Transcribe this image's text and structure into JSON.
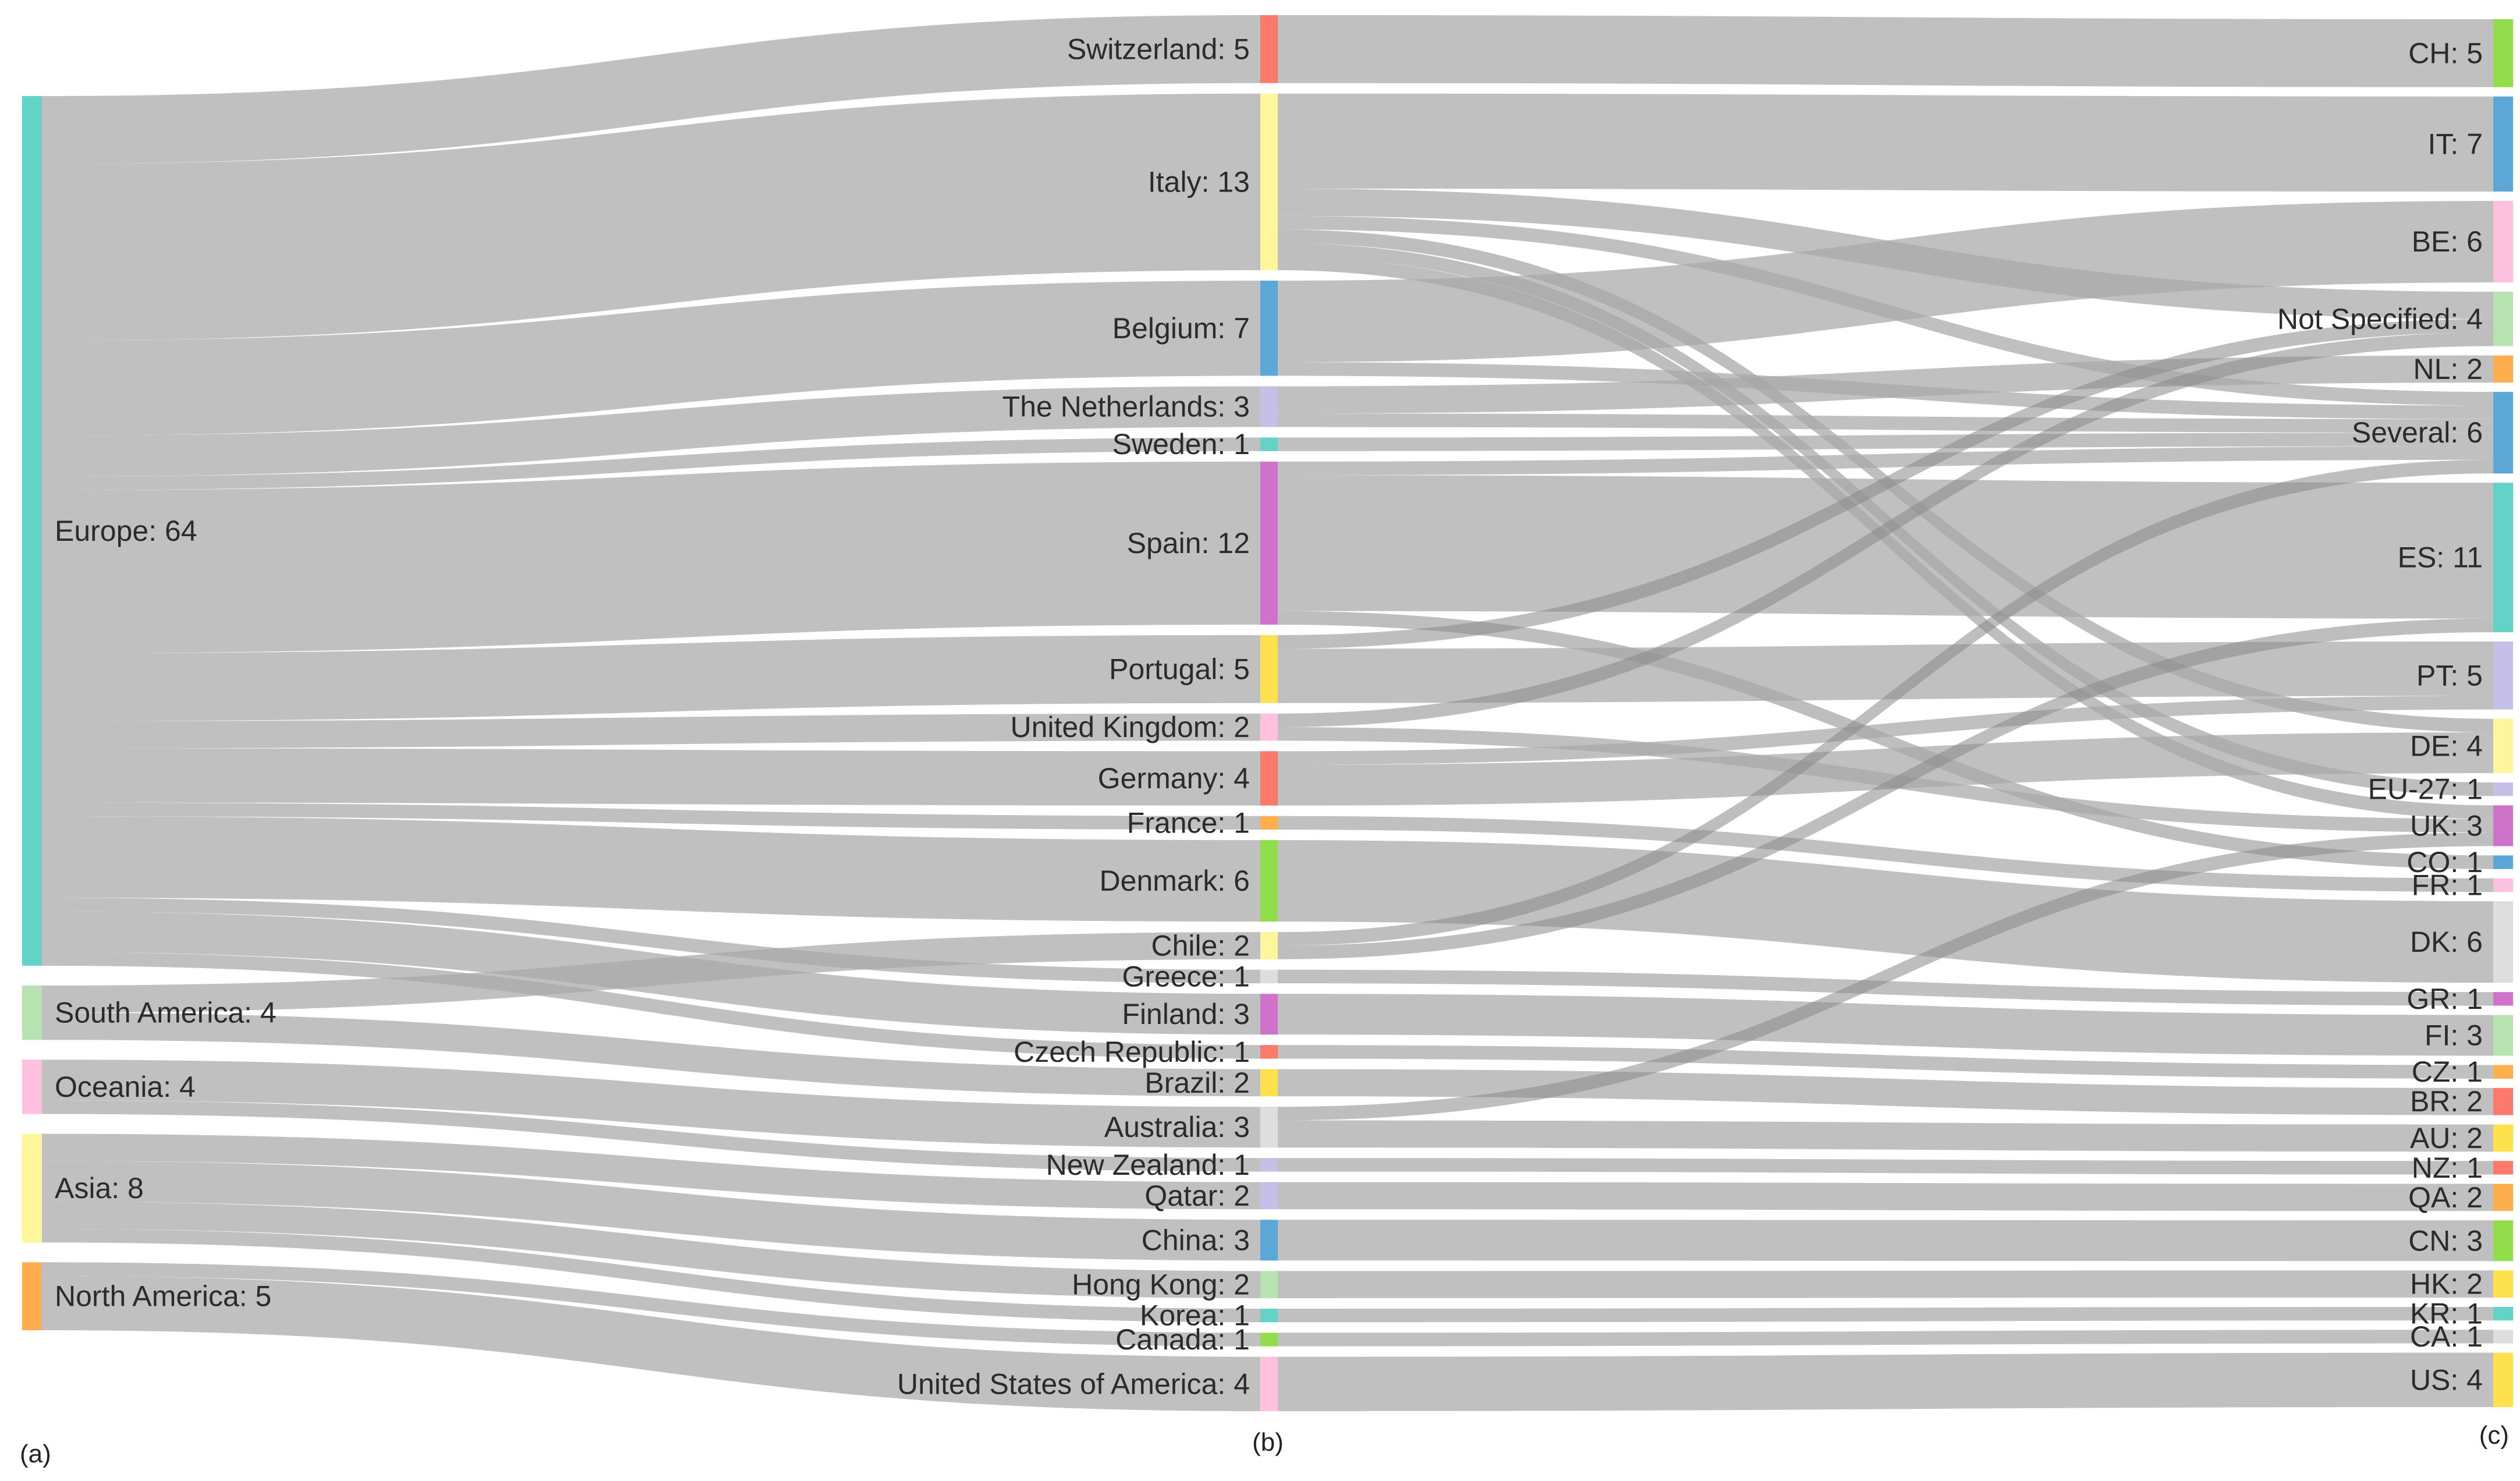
{
  "column_labels": [
    "(a)",
    "(b)",
    "(c)"
  ],
  "palette": {
    "teal": "#62d3c6",
    "green": "#b6e3b0",
    "pink": "#ffc1de",
    "yellow": "#fff59a",
    "orange": "#ffae4d",
    "red": "#fb7a6c",
    "lime": "#92de4a",
    "blue": "#5ba8d6",
    "lavender": "#c5c0e8",
    "magenta": "#cf72c9",
    "gold": "#ffe14d",
    "lightgray": "#dedede",
    "link": "#a8a8a8"
  },
  "chart_data": {
    "type": "sankey",
    "columns": [
      [
        {
          "id": "eu",
          "label": "Europe: 64",
          "value": 64,
          "color": "teal"
        },
        {
          "id": "sa",
          "label": "South America: 4",
          "value": 4,
          "color": "green"
        },
        {
          "id": "oc",
          "label": "Oceania: 4",
          "value": 4,
          "color": "pink"
        },
        {
          "id": "as",
          "label": "Asia: 8",
          "value": 8,
          "color": "yellow"
        },
        {
          "id": "na",
          "label": "North America: 5",
          "value": 5,
          "color": "orange"
        }
      ],
      [
        {
          "id": "ch",
          "label": "Switzerland: 5",
          "value": 5,
          "color": "red"
        },
        {
          "id": "it",
          "label": "Italy: 13",
          "value": 13,
          "color": "yellow"
        },
        {
          "id": "be",
          "label": "Belgium: 7",
          "value": 7,
          "color": "blue"
        },
        {
          "id": "nl",
          "label": "The Netherlands: 3",
          "value": 3,
          "color": "lavender"
        },
        {
          "id": "se",
          "label": "Sweden: 1",
          "value": 1,
          "color": "teal"
        },
        {
          "id": "es",
          "label": "Spain: 12",
          "value": 12,
          "color": "magenta"
        },
        {
          "id": "pt",
          "label": "Portugal: 5",
          "value": 5,
          "color": "gold"
        },
        {
          "id": "uk",
          "label": "United Kingdom: 2",
          "value": 2,
          "color": "pink"
        },
        {
          "id": "de",
          "label": "Germany: 4",
          "value": 4,
          "color": "red"
        },
        {
          "id": "fr",
          "label": "France: 1",
          "value": 1,
          "color": "orange"
        },
        {
          "id": "dk",
          "label": "Denmark: 6",
          "value": 6,
          "color": "lime"
        },
        {
          "id": "cl",
          "label": "Chile: 2",
          "value": 2,
          "color": "yellow"
        },
        {
          "id": "gr",
          "label": "Greece: 1",
          "value": 1,
          "color": "lightgray"
        },
        {
          "id": "fi",
          "label": "Finland: 3",
          "value": 3,
          "color": "magenta"
        },
        {
          "id": "cz",
          "label": "Czech Republic: 1",
          "value": 1,
          "color": "red"
        },
        {
          "id": "br",
          "label": "Brazil: 2",
          "value": 2,
          "color": "gold"
        },
        {
          "id": "au",
          "label": "Australia: 3",
          "value": 3,
          "color": "lightgray"
        },
        {
          "id": "nz",
          "label": "New Zealand: 1",
          "value": 1,
          "color": "lavender"
        },
        {
          "id": "qa",
          "label": "Qatar: 2",
          "value": 2,
          "color": "lavender"
        },
        {
          "id": "cn",
          "label": "China: 3",
          "value": 3,
          "color": "blue"
        },
        {
          "id": "hk",
          "label": "Hong Kong: 2",
          "value": 2,
          "color": "green"
        },
        {
          "id": "kr",
          "label": "Korea: 1",
          "value": 1,
          "color": "teal"
        },
        {
          "id": "ca",
          "label": "Canada: 1",
          "value": 1,
          "color": "lime"
        },
        {
          "id": "us",
          "label": "United States of America: 4",
          "value": 4,
          "color": "pink"
        }
      ],
      [
        {
          "id": "c_ch",
          "label": "CH: 5",
          "value": 5,
          "color": "lime"
        },
        {
          "id": "c_it",
          "label": "IT: 7",
          "value": 7,
          "color": "blue"
        },
        {
          "id": "c_be",
          "label": "BE: 6",
          "value": 6,
          "color": "pink"
        },
        {
          "id": "c_ns",
          "label": "Not Specified: 4",
          "value": 4,
          "color": "green"
        },
        {
          "id": "c_nl",
          "label": "NL: 2",
          "value": 2,
          "color": "orange"
        },
        {
          "id": "c_sev",
          "label": "Several: 6",
          "value": 6,
          "color": "blue"
        },
        {
          "id": "c_es",
          "label": "ES: 11",
          "value": 11,
          "color": "teal"
        },
        {
          "id": "c_pt",
          "label": "PT: 5",
          "value": 5,
          "color": "lavender"
        },
        {
          "id": "c_de",
          "label": "DE: 4",
          "value": 4,
          "color": "yellow"
        },
        {
          "id": "c_eu27",
          "label": "EU-27: 1",
          "value": 1,
          "color": "lavender"
        },
        {
          "id": "c_uk",
          "label": "UK: 3",
          "value": 3,
          "color": "magenta"
        },
        {
          "id": "c_co",
          "label": "CO: 1",
          "value": 1,
          "color": "blue"
        },
        {
          "id": "c_fr",
          "label": "FR: 1",
          "value": 1,
          "color": "pink"
        },
        {
          "id": "c_dk",
          "label": "DK: 6",
          "value": 6,
          "color": "lightgray"
        },
        {
          "id": "c_gr",
          "label": "GR: 1",
          "value": 1,
          "color": "magenta"
        },
        {
          "id": "c_fi",
          "label": "FI: 3",
          "value": 3,
          "color": "green"
        },
        {
          "id": "c_cz",
          "label": "CZ: 1",
          "value": 1,
          "color": "orange"
        },
        {
          "id": "c_br",
          "label": "BR: 2",
          "value": 2,
          "color": "red"
        },
        {
          "id": "c_au",
          "label": "AU: 2",
          "value": 2,
          "color": "gold"
        },
        {
          "id": "c_nz",
          "label": "NZ: 1",
          "value": 1,
          "color": "red"
        },
        {
          "id": "c_qa",
          "label": "QA: 2",
          "value": 2,
          "color": "orange"
        },
        {
          "id": "c_cn",
          "label": "CN: 3",
          "value": 3,
          "color": "lime"
        },
        {
          "id": "c_hk",
          "label": "HK: 2",
          "value": 2,
          "color": "gold"
        },
        {
          "id": "c_kr",
          "label": "KR: 1",
          "value": 1,
          "color": "teal"
        },
        {
          "id": "c_ca",
          "label": "CA: 1",
          "value": 1,
          "color": "lightgray"
        },
        {
          "id": "c_us",
          "label": "US: 4",
          "value": 4,
          "color": "gold"
        }
      ]
    ],
    "links": [
      {
        "source": "eu",
        "target": "ch",
        "value": 5
      },
      {
        "source": "eu",
        "target": "it",
        "value": 13
      },
      {
        "source": "eu",
        "target": "be",
        "value": 7
      },
      {
        "source": "eu",
        "target": "nl",
        "value": 3
      },
      {
        "source": "eu",
        "target": "se",
        "value": 1
      },
      {
        "source": "eu",
        "target": "es",
        "value": 12
      },
      {
        "source": "eu",
        "target": "pt",
        "value": 5
      },
      {
        "source": "eu",
        "target": "uk",
        "value": 2
      },
      {
        "source": "eu",
        "target": "de",
        "value": 4
      },
      {
        "source": "eu",
        "target": "fr",
        "value": 1
      },
      {
        "source": "eu",
        "target": "dk",
        "value": 6
      },
      {
        "source": "eu",
        "target": "gr",
        "value": 1
      },
      {
        "source": "eu",
        "target": "fi",
        "value": 3
      },
      {
        "source": "eu",
        "target": "cz",
        "value": 1
      },
      {
        "source": "sa",
        "target": "cl",
        "value": 2
      },
      {
        "source": "sa",
        "target": "br",
        "value": 2
      },
      {
        "source": "oc",
        "target": "au",
        "value": 3
      },
      {
        "source": "oc",
        "target": "nz",
        "value": 1
      },
      {
        "source": "as",
        "target": "qa",
        "value": 2
      },
      {
        "source": "as",
        "target": "cn",
        "value": 3
      },
      {
        "source": "as",
        "target": "hk",
        "value": 2
      },
      {
        "source": "as",
        "target": "kr",
        "value": 1
      },
      {
        "source": "na",
        "target": "ca",
        "value": 1
      },
      {
        "source": "na",
        "target": "us",
        "value": 4
      },
      {
        "source": "ch",
        "target": "c_ch",
        "value": 5
      },
      {
        "source": "it",
        "target": "c_it",
        "value": 7
      },
      {
        "source": "it",
        "target": "c_ns",
        "value": 2
      },
      {
        "source": "it",
        "target": "c_sev",
        "value": 1
      },
      {
        "source": "it",
        "target": "c_de",
        "value": 1
      },
      {
        "source": "it",
        "target": "c_eu27",
        "value": 1
      },
      {
        "source": "it",
        "target": "c_uk",
        "value": 1
      },
      {
        "source": "be",
        "target": "c_be",
        "value": 6
      },
      {
        "source": "be",
        "target": "c_sev",
        "value": 1
      },
      {
        "source": "nl",
        "target": "c_nl",
        "value": 2
      },
      {
        "source": "nl",
        "target": "c_sev",
        "value": 1
      },
      {
        "source": "se",
        "target": "c_sev",
        "value": 1
      },
      {
        "source": "es",
        "target": "c_sev",
        "value": 1
      },
      {
        "source": "es",
        "target": "c_es",
        "value": 10
      },
      {
        "source": "es",
        "target": "c_co",
        "value": 1
      },
      {
        "source": "pt",
        "target": "c_ns",
        "value": 1
      },
      {
        "source": "pt",
        "target": "c_pt",
        "value": 4
      },
      {
        "source": "uk",
        "target": "c_ns",
        "value": 1
      },
      {
        "source": "uk",
        "target": "c_uk",
        "value": 1
      },
      {
        "source": "de",
        "target": "c_de",
        "value": 3
      },
      {
        "source": "de",
        "target": "c_pt",
        "value": 1
      },
      {
        "source": "fr",
        "target": "c_fr",
        "value": 1
      },
      {
        "source": "dk",
        "target": "c_dk",
        "value": 6
      },
      {
        "source": "cl",
        "target": "c_sev",
        "value": 1
      },
      {
        "source": "cl",
        "target": "c_es",
        "value": 1
      },
      {
        "source": "gr",
        "target": "c_gr",
        "value": 1
      },
      {
        "source": "fi",
        "target": "c_fi",
        "value": 3
      },
      {
        "source": "cz",
        "target": "c_cz",
        "value": 1
      },
      {
        "source": "br",
        "target": "c_br",
        "value": 2
      },
      {
        "source": "au",
        "target": "c_uk",
        "value": 1
      },
      {
        "source": "au",
        "target": "c_au",
        "value": 2
      },
      {
        "source": "nz",
        "target": "c_nz",
        "value": 1
      },
      {
        "source": "qa",
        "target": "c_qa",
        "value": 2
      },
      {
        "source": "cn",
        "target": "c_cn",
        "value": 3
      },
      {
        "source": "hk",
        "target": "c_hk",
        "value": 2
      },
      {
        "source": "kr",
        "target": "c_kr",
        "value": 1
      },
      {
        "source": "ca",
        "target": "c_ca",
        "value": 1
      },
      {
        "source": "us",
        "target": "c_us",
        "value": 4
      }
    ]
  }
}
